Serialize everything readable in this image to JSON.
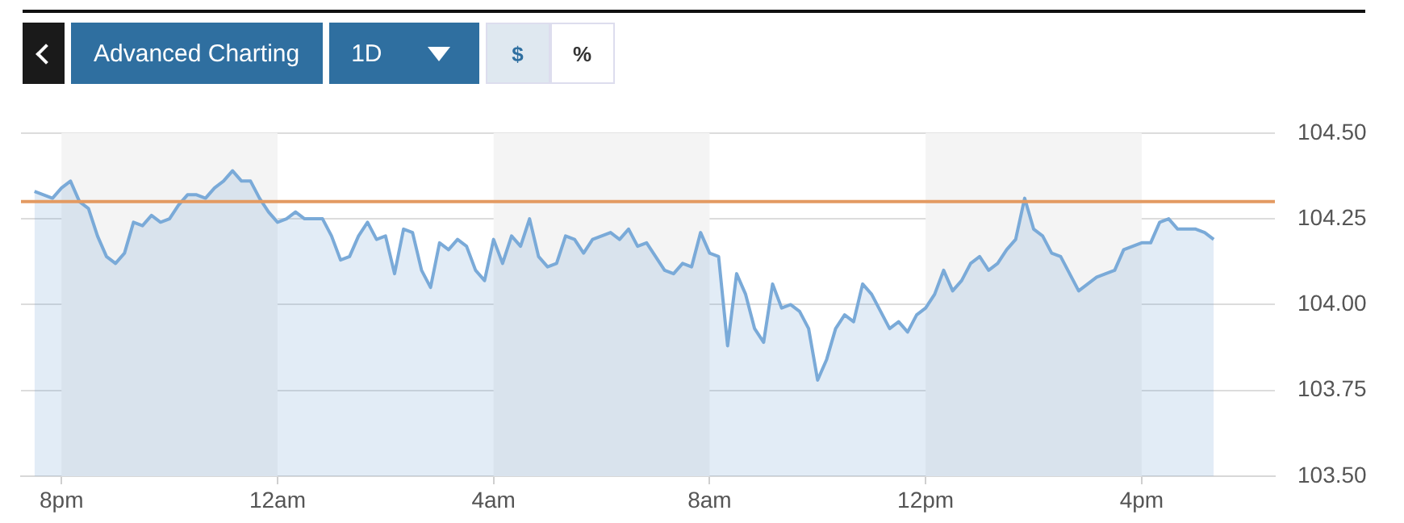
{
  "chart_data": {
    "type": "area",
    "color": "#7aaad8",
    "categories": [
      null,
      null,
      null,
      "8pm",
      null,
      null,
      null,
      null,
      null,
      null,
      null,
      null,
      null,
      null,
      null,
      null,
      null,
      null,
      null,
      null,
      null,
      null,
      null,
      null,
      null,
      null,
      null,
      "12am",
      null,
      null,
      null,
      null,
      null,
      null,
      null,
      null,
      null,
      null,
      null,
      null,
      null,
      null,
      null,
      null,
      null,
      null,
      null,
      null,
      null,
      null,
      null,
      "4am",
      null,
      null,
      null,
      null,
      null,
      null,
      null,
      null,
      null,
      null,
      null,
      null,
      null,
      null,
      null,
      null,
      null,
      null,
      null,
      null,
      null,
      null,
      null,
      "8am",
      null,
      null,
      null,
      null,
      null,
      null,
      null,
      null,
      null,
      null,
      null,
      null,
      null,
      null,
      null,
      null,
      null,
      null,
      null,
      null,
      null,
      null,
      null,
      "12pm",
      null,
      null,
      null,
      null,
      null,
      null,
      null,
      null,
      null,
      null,
      null,
      null,
      null,
      null,
      null,
      null,
      null,
      null,
      null,
      null,
      null,
      null,
      null,
      "4pm",
      null,
      null,
      null,
      null,
      null,
      null,
      null,
      null
    ],
    "values": [
      104.33,
      104.32,
      104.31,
      104.34,
      104.36,
      104.3,
      104.28,
      104.2,
      104.14,
      104.12,
      104.15,
      104.24,
      104.23,
      104.26,
      104.24,
      104.25,
      104.29,
      104.32,
      104.32,
      104.31,
      104.34,
      104.36,
      104.39,
      104.36,
      104.36,
      104.31,
      104.27,
      104.24,
      104.25,
      104.27,
      104.25,
      104.25,
      104.25,
      104.2,
      104.13,
      104.14,
      104.2,
      104.24,
      104.19,
      104.2,
      104.09,
      104.22,
      104.21,
      104.1,
      104.05,
      104.18,
      104.16,
      104.19,
      104.17,
      104.1,
      104.07,
      104.19,
      104.12,
      104.2,
      104.17,
      104.25,
      104.14,
      104.11,
      104.12,
      104.2,
      104.19,
      104.15,
      104.19,
      104.2,
      104.21,
      104.19,
      104.22,
      104.17,
      104.18,
      104.14,
      104.1,
      104.09,
      104.12,
      104.11,
      104.21,
      104.15,
      104.14,
      103.88,
      104.09,
      104.03,
      103.93,
      103.89,
      104.06,
      103.99,
      104.0,
      103.98,
      103.93,
      103.78,
      103.84,
      103.93,
      103.97,
      103.95,
      104.06,
      104.03,
      103.98,
      103.93,
      103.95,
      103.92,
      103.97,
      103.99,
      104.03,
      104.1,
      104.04,
      104.07,
      104.12,
      104.14,
      104.1,
      104.12,
      104.16,
      104.19,
      104.31,
      104.22,
      104.2,
      104.15,
      104.14,
      104.09,
      104.04,
      104.06,
      104.08,
      104.09,
      104.1,
      104.16,
      104.17,
      104.18,
      104.18,
      104.24,
      104.25,
      104.22,
      104.22,
      104.22,
      104.21,
      104.19
    ],
    "ylim": [
      103.5,
      104.5
    ],
    "yticks": [
      {
        "value": 103.5,
        "label": "103.50"
      },
      103.75,
      {
        "value": 104,
        "label": "104.00"
      },
      104.25,
      {
        "value": 104.5,
        "label": "104.50"
      }
    ],
    "ref_lines": [
      {
        "axis": "y",
        "value": 104.3,
        "color": "#e39a62"
      }
    ],
    "bands": [
      {
        "axis": "x",
        "from": "8pm",
        "to": "12am",
        "color": "#f4f4f4"
      },
      {
        "axis": "x",
        "from": "4am",
        "to": "8am",
        "color": "#f4f4f4"
      },
      {
        "axis": "x",
        "from": "12pm",
        "to": "4pm",
        "color": "#f4f4f4"
      }
    ],
    "grid": "y",
    "legend": false,
    "marker": "none",
    "line_style": "solid",
    "annotations": [
      "Advanced Charting",
      "1D",
      "$",
      "%"
    ]
  }
}
